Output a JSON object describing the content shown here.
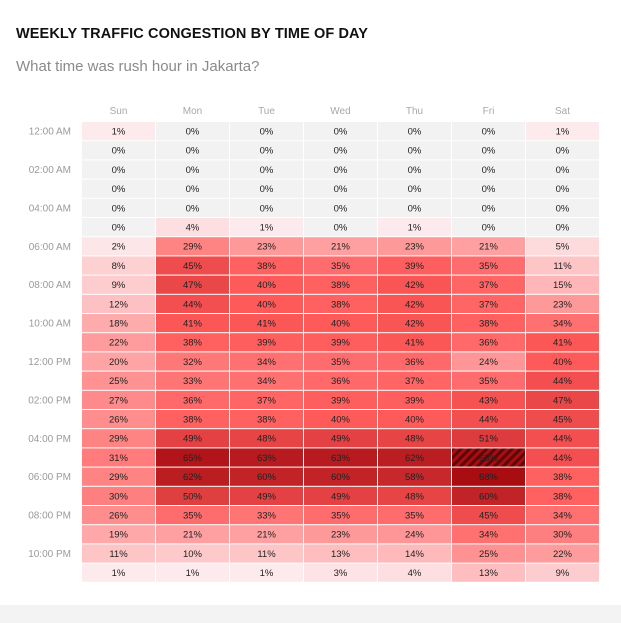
{
  "header": {
    "title": "WEEKLY TRAFFIC CONGESTION BY TIME OF DAY",
    "subtitle": "What time was rush hour in Jakarta?"
  },
  "colors": {
    "grid_background": "#f2f2f2",
    "low": "#fdeaec",
    "mid": "#ff5a5a",
    "high": "#a80d12",
    "peak_hatch": "#5e0709"
  },
  "chart_data": {
    "type": "heatmap",
    "title": "WEEKLY TRAFFIC CONGESTION BY TIME OF DAY",
    "subtitle": "What time was rush hour in Jakarta?",
    "columns": [
      "Sun",
      "Mon",
      "Tue",
      "Wed",
      "Thu",
      "Fri",
      "Sat"
    ],
    "row_labels": [
      "12:00 AM",
      "",
      "02:00 AM",
      "",
      "04:00 AM",
      "",
      "06:00 AM",
      "",
      "08:00 AM",
      "",
      "10:00 AM",
      "",
      "12:00 PM",
      "",
      "02:00 PM",
      "",
      "04:00 PM",
      "",
      "06:00 PM",
      "",
      "08:00 PM",
      "",
      "10:00 PM",
      ""
    ],
    "value_suffix": "%",
    "peak": {
      "row": 17,
      "col": 5
    },
    "values": [
      [
        1,
        0,
        0,
        0,
        0,
        0,
        1
      ],
      [
        0,
        0,
        0,
        0,
        0,
        0,
        0
      ],
      [
        0,
        0,
        0,
        0,
        0,
        0,
        0
      ],
      [
        0,
        0,
        0,
        0,
        0,
        0,
        0
      ],
      [
        0,
        0,
        0,
        0,
        0,
        0,
        0
      ],
      [
        0,
        4,
        1,
        0,
        1,
        0,
        0
      ],
      [
        2,
        29,
        23,
        21,
        23,
        21,
        5
      ],
      [
        8,
        45,
        38,
        35,
        39,
        35,
        11
      ],
      [
        9,
        47,
        40,
        38,
        42,
        37,
        15
      ],
      [
        12,
        44,
        40,
        38,
        42,
        37,
        23
      ],
      [
        18,
        41,
        41,
        40,
        42,
        38,
        34
      ],
      [
        22,
        38,
        39,
        39,
        41,
        36,
        41
      ],
      [
        20,
        32,
        34,
        35,
        36,
        24,
        40
      ],
      [
        25,
        33,
        34,
        36,
        37,
        35,
        44
      ],
      [
        27,
        36,
        37,
        39,
        39,
        43,
        47
      ],
      [
        26,
        38,
        38,
        40,
        40,
        44,
        45
      ],
      [
        29,
        49,
        48,
        49,
        48,
        51,
        44
      ],
      [
        31,
        65,
        63,
        63,
        62,
        68,
        44
      ],
      [
        29,
        62,
        60,
        60,
        58,
        68,
        38
      ],
      [
        30,
        50,
        49,
        49,
        48,
        60,
        38
      ],
      [
        26,
        35,
        33,
        35,
        35,
        45,
        34
      ],
      [
        19,
        21,
        21,
        23,
        24,
        34,
        30
      ],
      [
        11,
        10,
        11,
        13,
        14,
        25,
        22
      ],
      [
        1,
        1,
        1,
        3,
        4,
        13,
        9
      ]
    ]
  }
}
